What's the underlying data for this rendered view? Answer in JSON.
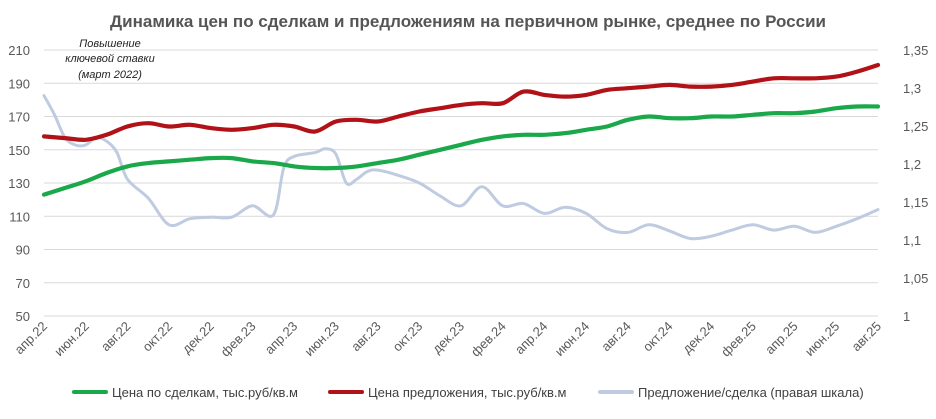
{
  "chart_data": {
    "type": "line",
    "title": "Динамика цен по сделкам и предложениям на первичном рынке, среднее по России",
    "annotation": [
      "Повышение",
      "ключевой ставки",
      "(март 2022)"
    ],
    "left_axis": {
      "ylim": [
        50,
        210
      ],
      "ticks": [
        50,
        70,
        90,
        110,
        130,
        150,
        170,
        190,
        210
      ]
    },
    "right_axis": {
      "ylim": [
        1.0,
        1.35
      ],
      "ticks": [
        "1",
        "1,05",
        "1,1",
        "1,15",
        "1,2",
        "1,25",
        "1,3",
        "1,35"
      ],
      "tick_values": [
        1.0,
        1.05,
        1.1,
        1.15,
        1.2,
        1.25,
        1.3,
        1.35
      ]
    },
    "x_tick_labels": [
      "апр.22",
      "июн.22",
      "авг.22",
      "окт.22",
      "дек.22",
      "фев.23",
      "апр.23",
      "июн.23",
      "авг.23",
      "окт.23",
      "дек.23",
      "фев.24",
      "апр.24",
      "июн.24",
      "авг.24",
      "окт.24",
      "дек.24",
      "фев.25",
      "апр.25",
      "июн.25",
      "авг.25"
    ],
    "x_range": [
      0,
      40
    ],
    "series": [
      {
        "name": "Цена по сделкам, тыс.руб/кв.м",
        "color": "#1aa84a",
        "axis": "left",
        "points": [
          [
            0,
            123
          ],
          [
            1,
            127
          ],
          [
            2,
            131
          ],
          [
            3,
            136
          ],
          [
            4,
            140
          ],
          [
            5,
            142
          ],
          [
            6,
            143
          ],
          [
            7,
            144
          ],
          [
            8,
            145
          ],
          [
            9,
            145
          ],
          [
            10,
            143
          ],
          [
            11,
            142
          ],
          [
            12,
            140
          ],
          [
            13,
            139
          ],
          [
            14,
            139
          ],
          [
            15,
            140
          ],
          [
            16,
            142
          ],
          [
            17,
            144
          ],
          [
            18,
            147
          ],
          [
            19,
            150
          ],
          [
            20,
            153
          ],
          [
            21,
            156
          ],
          [
            22,
            158
          ],
          [
            23,
            159
          ],
          [
            24,
            159
          ],
          [
            25,
            160
          ],
          [
            26,
            162
          ],
          [
            27,
            164
          ],
          [
            28,
            168
          ],
          [
            29,
            170
          ],
          [
            30,
            169
          ],
          [
            31,
            169
          ],
          [
            32,
            170
          ],
          [
            33,
            170
          ],
          [
            34,
            171
          ],
          [
            35,
            172
          ],
          [
            36,
            172
          ],
          [
            37,
            173
          ],
          [
            38,
            175
          ],
          [
            39,
            176
          ],
          [
            40,
            176
          ]
        ]
      },
      {
        "name": "Цена предложения, тыс.руб/кв.м",
        "color": "#b01217",
        "axis": "left",
        "points": [
          [
            0,
            158
          ],
          [
            1,
            157
          ],
          [
            2,
            156
          ],
          [
            3,
            159
          ],
          [
            4,
            164
          ],
          [
            5,
            166
          ],
          [
            6,
            164
          ],
          [
            7,
            165
          ],
          [
            8,
            163
          ],
          [
            9,
            162
          ],
          [
            10,
            163
          ],
          [
            11,
            165
          ],
          [
            12,
            164
          ],
          [
            13,
            161
          ],
          [
            14,
            167
          ],
          [
            15,
            168
          ],
          [
            16,
            167
          ],
          [
            17,
            170
          ],
          [
            18,
            173
          ],
          [
            19,
            175
          ],
          [
            20,
            177
          ],
          [
            21,
            178
          ],
          [
            22,
            178
          ],
          [
            23,
            185
          ],
          [
            24,
            183
          ],
          [
            25,
            182
          ],
          [
            26,
            183
          ],
          [
            27,
            186
          ],
          [
            28,
            187
          ],
          [
            29,
            188
          ],
          [
            30,
            189
          ],
          [
            31,
            188
          ],
          [
            32,
            188
          ],
          [
            33,
            189
          ],
          [
            34,
            191
          ],
          [
            35,
            193
          ],
          [
            36,
            193
          ],
          [
            37,
            193
          ],
          [
            38,
            194
          ],
          [
            39,
            197
          ],
          [
            40,
            201
          ]
        ]
      },
      {
        "name": "Предложение/сделка (правая шкала)",
        "color": "#bfcbe0",
        "axis": "right",
        "points": [
          [
            0,
            1.29
          ],
          [
            0.5,
            1.265
          ],
          [
            1,
            1.235
          ],
          [
            1.5,
            1.225
          ],
          [
            2,
            1.225
          ],
          [
            2.5,
            1.235
          ],
          [
            3,
            1.23
          ],
          [
            3.5,
            1.215
          ],
          [
            4,
            1.18
          ],
          [
            5,
            1.155
          ],
          [
            6,
            1.12
          ],
          [
            7,
            1.128
          ],
          [
            8,
            1.13
          ],
          [
            9,
            1.13
          ],
          [
            10,
            1.145
          ],
          [
            11,
            1.133
          ],
          [
            11.5,
            1.195
          ],
          [
            12,
            1.21
          ],
          [
            13,
            1.215
          ],
          [
            13.5,
            1.22
          ],
          [
            14,
            1.213
          ],
          [
            14.5,
            1.175
          ],
          [
            15,
            1.18
          ],
          [
            15.5,
            1.19
          ],
          [
            16,
            1.192
          ],
          [
            17,
            1.185
          ],
          [
            18,
            1.175
          ],
          [
            19,
            1.158
          ],
          [
            20,
            1.145
          ],
          [
            21,
            1.17
          ],
          [
            22,
            1.145
          ],
          [
            23,
            1.148
          ],
          [
            24,
            1.135
          ],
          [
            25,
            1.143
          ],
          [
            26,
            1.135
          ],
          [
            27,
            1.115
          ],
          [
            28,
            1.11
          ],
          [
            29,
            1.12
          ],
          [
            30,
            1.112
          ],
          [
            31,
            1.102
          ],
          [
            32,
            1.105
          ],
          [
            33,
            1.113
          ],
          [
            34,
            1.12
          ],
          [
            35,
            1.113
          ],
          [
            36,
            1.118
          ],
          [
            37,
            1.11
          ],
          [
            38,
            1.118
          ],
          [
            39,
            1.128
          ],
          [
            40,
            1.14
          ]
        ]
      }
    ],
    "legend": {
      "position": "bottom",
      "entries": [
        "Цена по сделкам, тыс.руб/кв.м",
        "Цена предложения, тыс.руб/кв.м",
        "Предложение/сделка (правая шкала)"
      ]
    }
  }
}
